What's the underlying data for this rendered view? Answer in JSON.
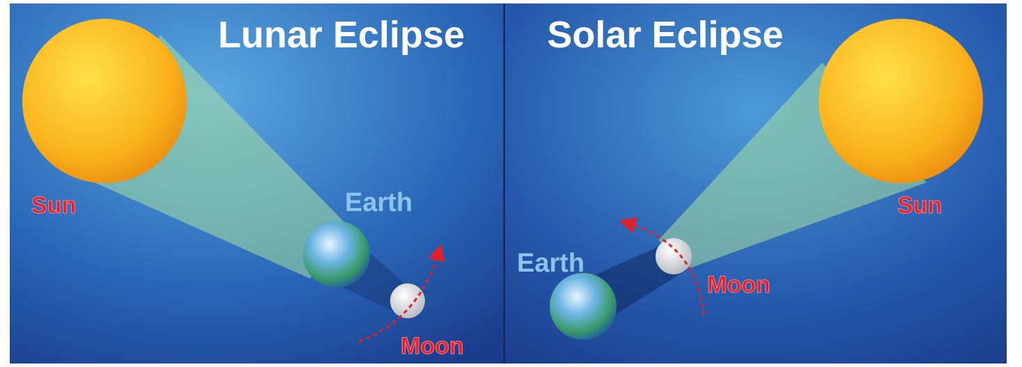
{
  "panels": [
    {
      "title": "Lunar Eclipse",
      "sun": "Sun",
      "earth": "Earth",
      "moon": "Moon"
    },
    {
      "title": "Solar Eclipse",
      "sun": "Sun",
      "earth": "Earth",
      "moon": "Moon"
    }
  ]
}
